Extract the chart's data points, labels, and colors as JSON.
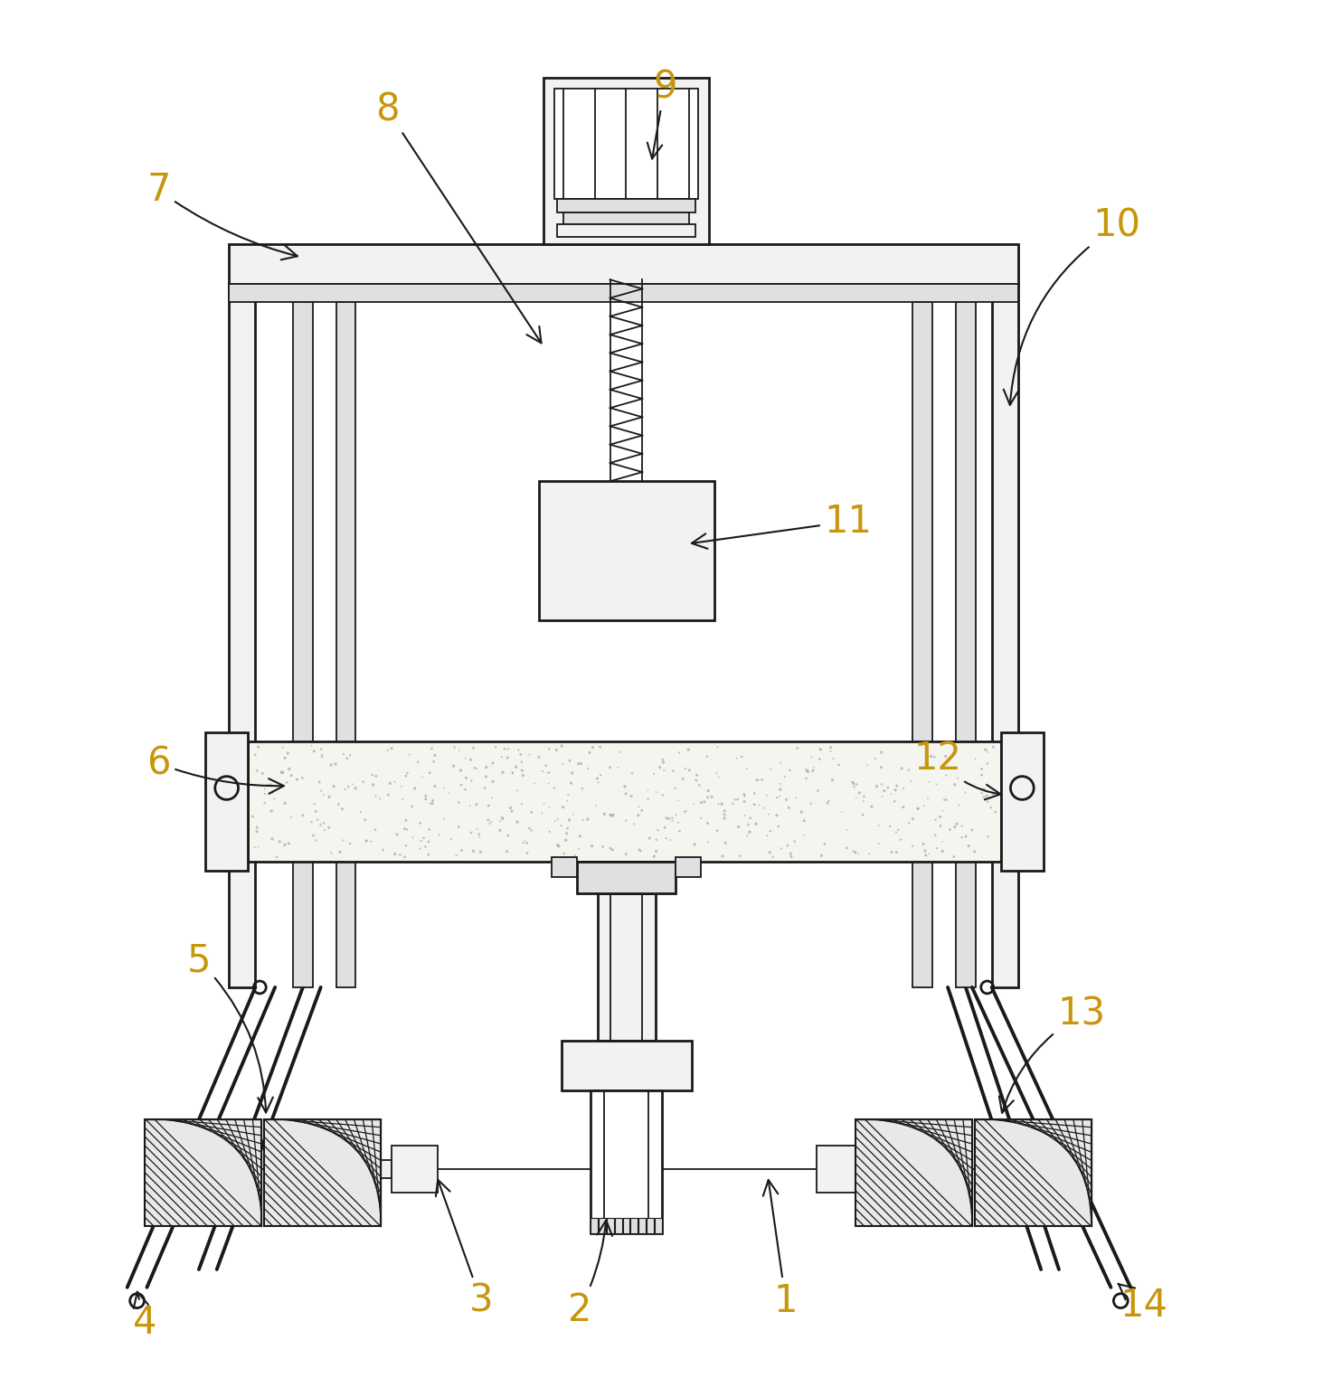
{
  "background_color": "#ffffff",
  "line_color": "#1a1a1a",
  "label_color": "#c8960c",
  "fig_width": 14.84,
  "fig_height": 15.34
}
